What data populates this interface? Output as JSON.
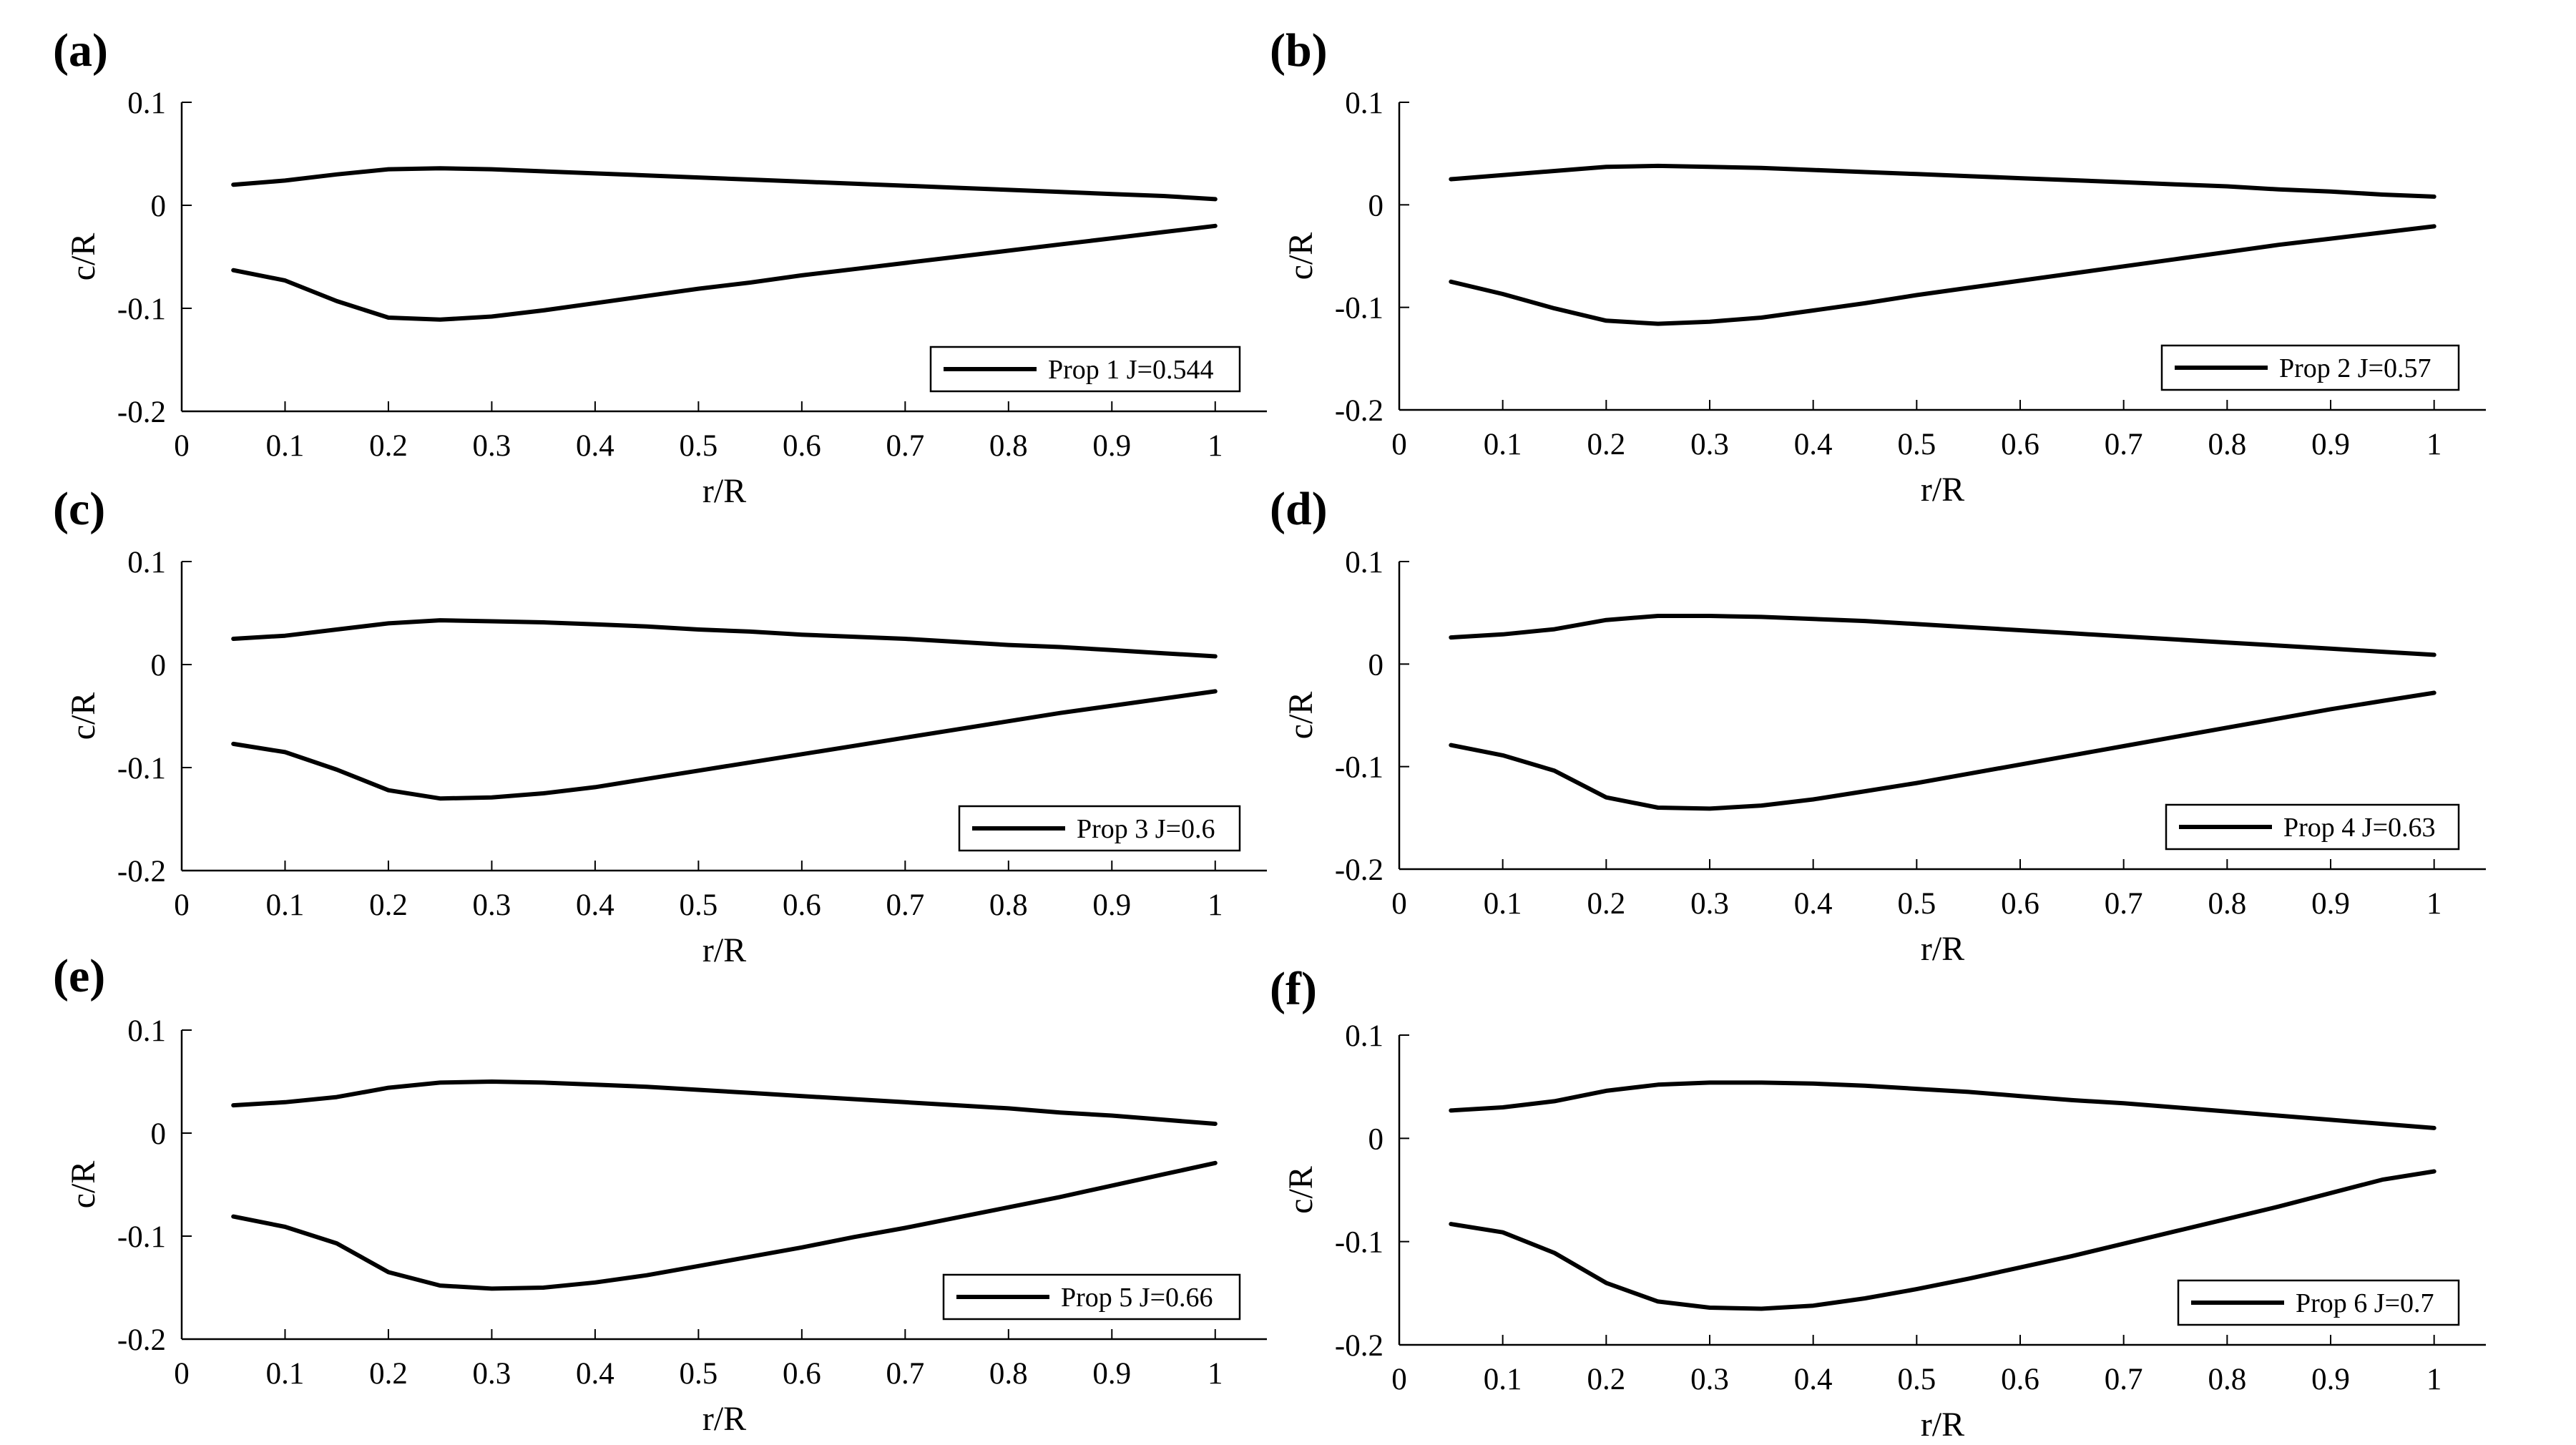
{
  "chart_data": [
    {
      "panel": "(a)",
      "type": "line",
      "xlabel": "r/R",
      "ylabel": "c/R",
      "xlim": [
        0,
        1.05
      ],
      "ylim": [
        -0.2,
        0.1
      ],
      "xticks": [
        "0",
        "0.1",
        "0.2",
        "0.3",
        "0.4",
        "0.5",
        "0.6",
        "0.7",
        "0.8",
        "0.9",
        "1"
      ],
      "yticks": [
        "-0.2",
        "-0.1",
        "0",
        "0.1"
      ],
      "legend": "Prop 1 J=0.544",
      "x": [
        0.05,
        0.1,
        0.15,
        0.2,
        0.25,
        0.3,
        0.35,
        0.4,
        0.45,
        0.5,
        0.55,
        0.6,
        0.65,
        0.7,
        0.75,
        0.8,
        0.85,
        0.9,
        0.95,
        1.0
      ],
      "series": [
        {
          "name": "upper",
          "values": [
            0.02,
            0.024,
            0.03,
            0.035,
            0.036,
            0.035,
            0.033,
            0.031,
            0.029,
            0.027,
            0.025,
            0.023,
            0.021,
            0.019,
            0.017,
            0.015,
            0.013,
            0.011,
            0.009,
            0.006
          ]
        },
        {
          "name": "lower",
          "values": [
            -0.063,
            -0.073,
            -0.093,
            -0.109,
            -0.111,
            -0.108,
            -0.102,
            -0.095,
            -0.088,
            -0.081,
            -0.075,
            -0.068,
            -0.062,
            -0.056,
            -0.05,
            -0.044,
            -0.038,
            -0.032,
            -0.026,
            -0.02
          ]
        }
      ]
    },
    {
      "panel": "(b)",
      "type": "line",
      "xlabel": "r/R",
      "ylabel": "c/R",
      "xlim": [
        0,
        1.05
      ],
      "ylim": [
        -0.2,
        0.1
      ],
      "xticks": [
        "0",
        "0.1",
        "0.2",
        "0.3",
        "0.4",
        "0.5",
        "0.6",
        "0.7",
        "0.8",
        "0.9",
        "1"
      ],
      "yticks": [
        "-0.2",
        "-0.1",
        "0",
        "0.1"
      ],
      "legend": "Prop 2 J=0.57",
      "x": [
        0.05,
        0.1,
        0.15,
        0.2,
        0.25,
        0.3,
        0.35,
        0.4,
        0.45,
        0.5,
        0.55,
        0.6,
        0.65,
        0.7,
        0.75,
        0.8,
        0.85,
        0.9,
        0.95,
        1.0
      ],
      "series": [
        {
          "name": "upper",
          "values": [
            0.025,
            0.029,
            0.033,
            0.037,
            0.038,
            0.037,
            0.036,
            0.034,
            0.032,
            0.03,
            0.028,
            0.026,
            0.024,
            0.022,
            0.02,
            0.018,
            0.015,
            0.013,
            0.01,
            0.008
          ]
        },
        {
          "name": "lower",
          "values": [
            -0.075,
            -0.087,
            -0.101,
            -0.113,
            -0.116,
            -0.114,
            -0.11,
            -0.103,
            -0.096,
            -0.088,
            -0.081,
            -0.074,
            -0.067,
            -0.06,
            -0.053,
            -0.046,
            -0.039,
            -0.033,
            -0.027,
            -0.021
          ]
        }
      ]
    },
    {
      "panel": "(c)",
      "type": "line",
      "xlabel": "r/R",
      "ylabel": "c/R",
      "xlim": [
        0,
        1.05
      ],
      "ylim": [
        -0.2,
        0.1
      ],
      "xticks": [
        "0",
        "0.1",
        "0.2",
        "0.3",
        "0.4",
        "0.5",
        "0.6",
        "0.7",
        "0.8",
        "0.9",
        "1"
      ],
      "yticks": [
        "-0.2",
        "-0.1",
        "0",
        "0.1"
      ],
      "legend": "Prop 3 J=0.6",
      "x": [
        0.05,
        0.1,
        0.15,
        0.2,
        0.25,
        0.3,
        0.35,
        0.4,
        0.45,
        0.5,
        0.55,
        0.6,
        0.65,
        0.7,
        0.75,
        0.8,
        0.85,
        0.9,
        0.95,
        1.0
      ],
      "series": [
        {
          "name": "upper",
          "values": [
            0.025,
            0.028,
            0.034,
            0.04,
            0.043,
            0.042,
            0.041,
            0.039,
            0.037,
            0.034,
            0.032,
            0.029,
            0.027,
            0.025,
            0.022,
            0.019,
            0.017,
            0.014,
            0.011,
            0.008
          ]
        },
        {
          "name": "lower",
          "values": [
            -0.077,
            -0.085,
            -0.102,
            -0.122,
            -0.13,
            -0.129,
            -0.125,
            -0.119,
            -0.111,
            -0.103,
            -0.095,
            -0.087,
            -0.079,
            -0.071,
            -0.063,
            -0.055,
            -0.047,
            -0.04,
            -0.033,
            -0.026
          ]
        }
      ]
    },
    {
      "panel": "(d)",
      "type": "line",
      "xlabel": "r/R",
      "ylabel": "c/R",
      "xlim": [
        0,
        1.05
      ],
      "ylim": [
        -0.2,
        0.1
      ],
      "xticks": [
        "0",
        "0.1",
        "0.2",
        "0.3",
        "0.4",
        "0.5",
        "0.6",
        "0.7",
        "0.8",
        "0.9",
        "1"
      ],
      "yticks": [
        "-0.2",
        "-0.1",
        "0",
        "0.1"
      ],
      "legend": "Prop 4 J=0.63",
      "x": [
        0.05,
        0.1,
        0.15,
        0.2,
        0.25,
        0.3,
        0.35,
        0.4,
        0.45,
        0.5,
        0.55,
        0.6,
        0.65,
        0.7,
        0.75,
        0.8,
        0.85,
        0.9,
        0.95,
        1.0
      ],
      "series": [
        {
          "name": "upper",
          "values": [
            0.026,
            0.029,
            0.034,
            0.043,
            0.047,
            0.047,
            0.046,
            0.044,
            0.042,
            0.039,
            0.036,
            0.033,
            0.03,
            0.027,
            0.024,
            0.021,
            0.018,
            0.015,
            0.012,
            0.009
          ]
        },
        {
          "name": "lower",
          "values": [
            -0.079,
            -0.089,
            -0.104,
            -0.13,
            -0.14,
            -0.141,
            -0.138,
            -0.132,
            -0.124,
            -0.116,
            -0.107,
            -0.098,
            -0.089,
            -0.08,
            -0.071,
            -0.062,
            -0.053,
            -0.044,
            -0.036,
            -0.028
          ]
        }
      ]
    },
    {
      "panel": "(e)",
      "type": "line",
      "xlabel": "r/R",
      "ylabel": "c/R",
      "xlim": [
        0,
        1.05
      ],
      "ylim": [
        -0.2,
        0.1
      ],
      "xticks": [
        "0",
        "0.1",
        "0.2",
        "0.3",
        "0.4",
        "0.5",
        "0.6",
        "0.7",
        "0.8",
        "0.9",
        "1"
      ],
      "yticks": [
        "-0.2",
        "-0.1",
        "0",
        "0.1"
      ],
      "legend": "Prop 5 J=0.66",
      "x": [
        0.05,
        0.1,
        0.15,
        0.2,
        0.25,
        0.3,
        0.35,
        0.4,
        0.45,
        0.5,
        0.55,
        0.6,
        0.65,
        0.7,
        0.75,
        0.8,
        0.85,
        0.9,
        0.95,
        1.0
      ],
      "series": [
        {
          "name": "upper",
          "values": [
            0.027,
            0.03,
            0.035,
            0.044,
            0.049,
            0.05,
            0.049,
            0.047,
            0.045,
            0.042,
            0.039,
            0.036,
            0.033,
            0.03,
            0.027,
            0.024,
            0.02,
            0.017,
            0.013,
            0.009
          ]
        },
        {
          "name": "lower",
          "values": [
            -0.081,
            -0.091,
            -0.107,
            -0.135,
            -0.148,
            -0.151,
            -0.15,
            -0.145,
            -0.138,
            -0.129,
            -0.12,
            -0.111,
            -0.101,
            -0.092,
            -0.082,
            -0.072,
            -0.062,
            -0.051,
            -0.04,
            -0.029
          ]
        }
      ]
    },
    {
      "panel": "(f)",
      "type": "line",
      "xlabel": "r/R",
      "ylabel": "c/R",
      "xlim": [
        0,
        1.05
      ],
      "ylim": [
        -0.2,
        0.1
      ],
      "xticks": [
        "0",
        "0.1",
        "0.2",
        "0.3",
        "0.4",
        "0.5",
        "0.6",
        "0.7",
        "0.8",
        "0.9",
        "1"
      ],
      "yticks": [
        "-0.2",
        "-0.1",
        "0",
        "0.1"
      ],
      "legend": "Prop 6 J=0.7",
      "x": [
        0.05,
        0.1,
        0.15,
        0.2,
        0.25,
        0.3,
        0.35,
        0.4,
        0.45,
        0.5,
        0.55,
        0.6,
        0.65,
        0.7,
        0.75,
        0.8,
        0.85,
        0.9,
        0.95,
        1.0
      ],
      "series": [
        {
          "name": "upper",
          "values": [
            0.027,
            0.03,
            0.036,
            0.046,
            0.052,
            0.054,
            0.054,
            0.053,
            0.051,
            0.048,
            0.045,
            0.041,
            0.037,
            0.034,
            0.03,
            0.026,
            0.022,
            0.018,
            0.014,
            0.01
          ]
        },
        {
          "name": "lower",
          "values": [
            -0.083,
            -0.091,
            -0.111,
            -0.14,
            -0.158,
            -0.164,
            -0.165,
            -0.162,
            -0.155,
            -0.146,
            -0.136,
            -0.125,
            -0.114,
            -0.102,
            -0.09,
            -0.078,
            -0.066,
            -0.053,
            -0.04,
            -0.032
          ]
        }
      ]
    }
  ]
}
